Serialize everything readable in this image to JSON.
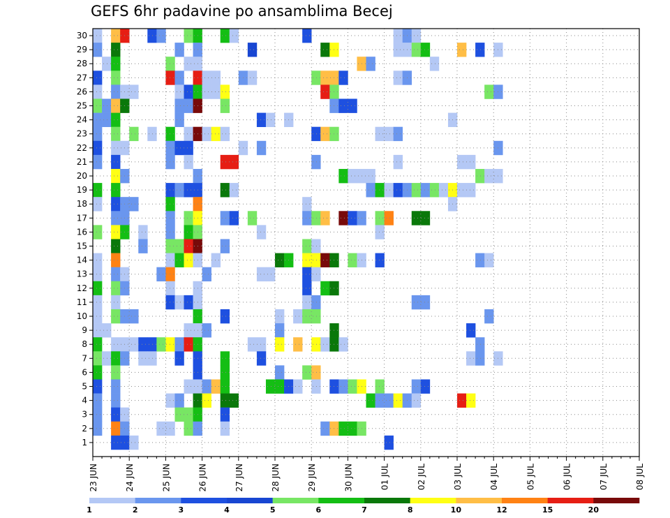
{
  "chart_data": {
    "type": "heatmap",
    "title": "GEFS 6hr padavine po ansamblima Becej",
    "y_ticks": [
      "1",
      "2",
      "3",
      "4",
      "5",
      "6",
      "7",
      "8",
      "9",
      "10",
      "11",
      "12",
      "13",
      "14",
      "15",
      "16",
      "17",
      "18",
      "19",
      "20",
      "21",
      "22",
      "23",
      "24",
      "25",
      "26",
      "27",
      "28",
      "29",
      "30"
    ],
    "y_range": [
      0,
      30
    ],
    "x_ticks": [
      "23 JUN",
      "24 JUN",
      "25 JUN",
      "26 JUN",
      "27 JUN",
      "28 JUN",
      "29 JUN",
      "30 JUN",
      "01 JUL",
      "02 JUL",
      "03 JUL",
      "04 JUL",
      "05 JUL",
      "06 JUL",
      "07 JUL",
      "08 JUL"
    ],
    "time_step_hours": 6,
    "grid": "dotted",
    "colorbar": {
      "labels": [
        "1",
        "2",
        "3",
        "4",
        "5",
        "6",
        "7",
        "8",
        "10",
        "12",
        "15",
        "20"
      ],
      "colors": [
        "#b4c8f5",
        "#6a96ee",
        "#1e50e0",
        "#1846d2",
        "#78e664",
        "#14be14",
        "#0a780a",
        "#ffff14",
        "#ffbe46",
        "#ff8214",
        "#e61e14",
        "#780a0a"
      ]
    },
    "cells": [
      [
        30,
        0,
        1
      ],
      [
        30,
        2,
        10
      ],
      [
        30,
        3,
        15
      ],
      [
        30,
        6,
        3
      ],
      [
        30,
        7,
        2
      ],
      [
        30,
        10,
        5
      ],
      [
        30,
        11,
        6
      ],
      [
        30,
        14,
        6
      ],
      [
        30,
        15,
        1
      ],
      [
        30,
        23,
        3
      ],
      [
        30,
        33,
        1
      ],
      [
        30,
        34,
        2
      ],
      [
        30,
        35,
        1
      ],
      [
        29,
        0,
        2
      ],
      [
        29,
        2,
        7
      ],
      [
        29,
        9,
        2
      ],
      [
        29,
        11,
        2
      ],
      [
        29,
        17,
        4
      ],
      [
        29,
        25,
        7
      ],
      [
        29,
        26,
        8
      ],
      [
        29,
        33,
        1
      ],
      [
        29,
        34,
        1
      ],
      [
        29,
        35,
        5
      ],
      [
        29,
        36,
        6
      ],
      [
        29,
        40,
        10
      ],
      [
        29,
        42,
        3
      ],
      [
        29,
        44,
        1
      ],
      [
        28,
        1,
        1
      ],
      [
        28,
        2,
        6
      ],
      [
        28,
        8,
        5
      ],
      [
        28,
        10,
        1
      ],
      [
        28,
        11,
        1
      ],
      [
        28,
        29,
        10
      ],
      [
        28,
        30,
        2
      ],
      [
        28,
        37,
        1
      ],
      [
        27,
        0,
        3
      ],
      [
        27,
        2,
        5
      ],
      [
        27,
        8,
        15
      ],
      [
        27,
        9,
        2
      ],
      [
        27,
        11,
        15
      ],
      [
        27,
        12,
        1
      ],
      [
        27,
        13,
        1
      ],
      [
        27,
        16,
        2
      ],
      [
        27,
        17,
        1
      ],
      [
        27,
        24,
        5
      ],
      [
        27,
        25,
        10
      ],
      [
        27,
        26,
        10
      ],
      [
        27,
        27,
        3
      ],
      [
        27,
        33,
        1
      ],
      [
        27,
        34,
        2
      ],
      [
        26,
        0,
        1
      ],
      [
        26,
        2,
        2
      ],
      [
        26,
        3,
        1
      ],
      [
        26,
        4,
        1
      ],
      [
        26,
        9,
        1
      ],
      [
        26,
        10,
        3
      ],
      [
        26,
        11,
        6
      ],
      [
        26,
        12,
        1
      ],
      [
        26,
        13,
        1
      ],
      [
        26,
        14,
        8
      ],
      [
        26,
        25,
        15
      ],
      [
        26,
        26,
        5
      ],
      [
        26,
        43,
        5
      ],
      [
        26,
        44,
        2
      ],
      [
        25,
        0,
        5
      ],
      [
        25,
        1,
        2
      ],
      [
        25,
        2,
        10
      ],
      [
        25,
        3,
        7
      ],
      [
        25,
        9,
        2
      ],
      [
        25,
        10,
        2
      ],
      [
        25,
        11,
        20
      ],
      [
        25,
        14,
        5
      ],
      [
        25,
        26,
        2
      ],
      [
        25,
        27,
        3
      ],
      [
        25,
        28,
        3
      ],
      [
        24,
        0,
        2
      ],
      [
        24,
        1,
        2
      ],
      [
        24,
        2,
        6
      ],
      [
        24,
        9,
        2
      ],
      [
        24,
        18,
        3
      ],
      [
        24,
        19,
        1
      ],
      [
        24,
        21,
        1
      ],
      [
        24,
        39,
        1
      ],
      [
        23,
        0,
        2
      ],
      [
        23,
        2,
        5
      ],
      [
        23,
        4,
        5
      ],
      [
        23,
        6,
        1
      ],
      [
        23,
        8,
        6
      ],
      [
        23,
        10,
        1
      ],
      [
        23,
        11,
        20
      ],
      [
        23,
        12,
        1
      ],
      [
        23,
        13,
        8
      ],
      [
        23,
        14,
        1
      ],
      [
        23,
        24,
        3
      ],
      [
        23,
        25,
        10
      ],
      [
        23,
        26,
        5
      ],
      [
        23,
        31,
        1
      ],
      [
        23,
        32,
        1
      ],
      [
        23,
        33,
        2
      ],
      [
        22,
        0,
        3
      ],
      [
        22,
        2,
        1
      ],
      [
        22,
        3,
        1
      ],
      [
        22,
        8,
        2
      ],
      [
        22,
        9,
        3
      ],
      [
        22,
        10,
        3
      ],
      [
        22,
        16,
        1
      ],
      [
        22,
        18,
        2
      ],
      [
        22,
        44,
        2
      ],
      [
        21,
        0,
        2
      ],
      [
        21,
        2,
        3
      ],
      [
        21,
        8,
        2
      ],
      [
        21,
        10,
        1
      ],
      [
        21,
        14,
        15
      ],
      [
        21,
        15,
        15
      ],
      [
        21,
        24,
        2
      ],
      [
        21,
        33,
        1
      ],
      [
        21,
        40,
        1
      ],
      [
        21,
        41,
        1
      ],
      [
        20,
        2,
        8
      ],
      [
        20,
        3,
        2
      ],
      [
        20,
        11,
        2
      ],
      [
        20,
        27,
        6
      ],
      [
        20,
        28,
        1
      ],
      [
        20,
        29,
        1
      ],
      [
        20,
        30,
        1
      ],
      [
        20,
        42,
        5
      ],
      [
        20,
        43,
        1
      ],
      [
        20,
        44,
        1
      ],
      [
        19,
        0,
        6
      ],
      [
        19,
        2,
        6
      ],
      [
        19,
        8,
        3
      ],
      [
        19,
        9,
        2
      ],
      [
        19,
        10,
        3
      ],
      [
        19,
        11,
        3
      ],
      [
        19,
        14,
        7
      ],
      [
        19,
        15,
        1
      ],
      [
        19,
        30,
        2
      ],
      [
        19,
        31,
        6
      ],
      [
        19,
        32,
        1
      ],
      [
        19,
        33,
        3
      ],
      [
        19,
        34,
        2
      ],
      [
        19,
        35,
        5
      ],
      [
        19,
        36,
        2
      ],
      [
        19,
        37,
        5
      ],
      [
        19,
        38,
        1
      ],
      [
        19,
        39,
        8
      ],
      [
        19,
        40,
        1
      ],
      [
        19,
        41,
        1
      ],
      [
        18,
        0,
        1
      ],
      [
        18,
        2,
        3
      ],
      [
        18,
        3,
        2
      ],
      [
        18,
        4,
        2
      ],
      [
        18,
        8,
        6
      ],
      [
        18,
        11,
        12
      ],
      [
        18,
        23,
        1
      ],
      [
        18,
        39,
        1
      ],
      [
        17,
        2,
        2
      ],
      [
        17,
        3,
        2
      ],
      [
        17,
        8,
        2
      ],
      [
        17,
        10,
        5
      ],
      [
        17,
        11,
        8
      ],
      [
        17,
        14,
        2
      ],
      [
        17,
        15,
        3
      ],
      [
        17,
        17,
        5
      ],
      [
        17,
        23,
        2
      ],
      [
        17,
        24,
        5
      ],
      [
        17,
        25,
        10
      ],
      [
        17,
        27,
        20
      ],
      [
        17,
        28,
        3
      ],
      [
        17,
        29,
        2
      ],
      [
        17,
        31,
        5
      ],
      [
        17,
        32,
        12
      ],
      [
        17,
        35,
        7
      ],
      [
        17,
        36,
        7
      ],
      [
        16,
        0,
        5
      ],
      [
        16,
        2,
        8
      ],
      [
        16,
        3,
        6
      ],
      [
        16,
        5,
        1
      ],
      [
        16,
        8,
        2
      ],
      [
        16,
        10,
        6
      ],
      [
        16,
        11,
        5
      ],
      [
        16,
        18,
        1
      ],
      [
        16,
        31,
        1
      ],
      [
        15,
        2,
        7
      ],
      [
        15,
        5,
        2
      ],
      [
        15,
        8,
        5
      ],
      [
        15,
        9,
        5
      ],
      [
        15,
        10,
        15
      ],
      [
        15,
        11,
        20
      ],
      [
        15,
        14,
        2
      ],
      [
        15,
        23,
        5
      ],
      [
        15,
        24,
        1
      ],
      [
        14,
        0,
        1
      ],
      [
        14,
        2,
        12
      ],
      [
        14,
        8,
        1
      ],
      [
        14,
        9,
        6
      ],
      [
        14,
        10,
        8
      ],
      [
        14,
        11,
        1
      ],
      [
        14,
        13,
        1
      ],
      [
        14,
        20,
        7
      ],
      [
        14,
        21,
        6
      ],
      [
        14,
        23,
        8
      ],
      [
        14,
        24,
        8
      ],
      [
        14,
        25,
        20
      ],
      [
        14,
        26,
        7
      ],
      [
        14,
        28,
        5
      ],
      [
        14,
        29,
        1
      ],
      [
        14,
        31,
        3
      ],
      [
        14,
        42,
        2
      ],
      [
        14,
        43,
        1
      ],
      [
        13,
        0,
        1
      ],
      [
        13,
        2,
        2
      ],
      [
        13,
        3,
        1
      ],
      [
        13,
        7,
        2
      ],
      [
        13,
        8,
        12
      ],
      [
        13,
        12,
        2
      ],
      [
        13,
        18,
        1
      ],
      [
        13,
        19,
        1
      ],
      [
        13,
        23,
        3
      ],
      [
        13,
        24,
        1
      ],
      [
        12,
        0,
        6
      ],
      [
        12,
        2,
        5
      ],
      [
        12,
        3,
        2
      ],
      [
        12,
        8,
        1
      ],
      [
        12,
        11,
        1
      ],
      [
        12,
        23,
        3
      ],
      [
        12,
        25,
        6
      ],
      [
        12,
        26,
        7
      ],
      [
        11,
        0,
        1
      ],
      [
        11,
        2,
        1
      ],
      [
        11,
        8,
        3
      ],
      [
        11,
        9,
        1
      ],
      [
        11,
        10,
        3
      ],
      [
        11,
        11,
        1
      ],
      [
        11,
        23,
        1
      ],
      [
        11,
        24,
        2
      ],
      [
        11,
        35,
        2
      ],
      [
        11,
        36,
        2
      ],
      [
        10,
        0,
        1
      ],
      [
        10,
        2,
        5
      ],
      [
        10,
        3,
        2
      ],
      [
        10,
        4,
        2
      ],
      [
        10,
        11,
        6
      ],
      [
        10,
        14,
        3
      ],
      [
        10,
        20,
        1
      ],
      [
        10,
        22,
        1
      ],
      [
        10,
        23,
        5
      ],
      [
        10,
        24,
        5
      ],
      [
        10,
        43,
        2
      ],
      [
        9,
        0,
        1
      ],
      [
        9,
        1,
        1
      ],
      [
        9,
        10,
        1
      ],
      [
        9,
        11,
        1
      ],
      [
        9,
        12,
        2
      ],
      [
        9,
        20,
        2
      ],
      [
        9,
        26,
        7
      ],
      [
        9,
        41,
        3
      ],
      [
        8,
        0,
        6
      ],
      [
        8,
        2,
        1
      ],
      [
        8,
        3,
        1
      ],
      [
        8,
        4,
        1
      ],
      [
        8,
        5,
        3
      ],
      [
        8,
        6,
        3
      ],
      [
        8,
        7,
        5
      ],
      [
        8,
        8,
        8
      ],
      [
        8,
        9,
        2
      ],
      [
        8,
        10,
        15
      ],
      [
        8,
        11,
        6
      ],
      [
        8,
        17,
        1
      ],
      [
        8,
        18,
        1
      ],
      [
        8,
        20,
        8
      ],
      [
        8,
        22,
        10
      ],
      [
        8,
        24,
        8
      ],
      [
        8,
        25,
        1
      ],
      [
        8,
        26,
        7
      ],
      [
        8,
        27,
        1
      ],
      [
        8,
        42,
        2
      ],
      [
        7,
        0,
        5
      ],
      [
        7,
        1,
        1
      ],
      [
        7,
        2,
        6
      ],
      [
        7,
        3,
        2
      ],
      [
        7,
        5,
        1
      ],
      [
        7,
        6,
        1
      ],
      [
        7,
        9,
        3
      ],
      [
        7,
        11,
        3
      ],
      [
        7,
        14,
        6
      ],
      [
        7,
        18,
        3
      ],
      [
        7,
        41,
        1
      ],
      [
        7,
        42,
        2
      ],
      [
        7,
        44,
        1
      ],
      [
        6,
        0,
        6
      ],
      [
        6,
        2,
        5
      ],
      [
        6,
        11,
        3
      ],
      [
        6,
        14,
        6
      ],
      [
        6,
        20,
        2
      ],
      [
        6,
        23,
        5
      ],
      [
        6,
        24,
        10
      ],
      [
        5,
        0,
        3
      ],
      [
        5,
        2,
        2
      ],
      [
        5,
        10,
        1
      ],
      [
        5,
        11,
        1
      ],
      [
        5,
        12,
        2
      ],
      [
        5,
        13,
        10
      ],
      [
        5,
        14,
        6
      ],
      [
        5,
        19,
        6
      ],
      [
        5,
        20,
        6
      ],
      [
        5,
        21,
        3
      ],
      [
        5,
        22,
        1
      ],
      [
        5,
        24,
        1
      ],
      [
        5,
        26,
        3
      ],
      [
        5,
        27,
        2
      ],
      [
        5,
        28,
        5
      ],
      [
        5,
        29,
        8
      ],
      [
        5,
        31,
        5
      ],
      [
        5,
        35,
        2
      ],
      [
        5,
        36,
        3
      ],
      [
        4,
        0,
        2
      ],
      [
        4,
        2,
        2
      ],
      [
        4,
        8,
        1
      ],
      [
        4,
        9,
        2
      ],
      [
        4,
        11,
        7
      ],
      [
        4,
        12,
        8
      ],
      [
        4,
        14,
        7
      ],
      [
        4,
        15,
        7
      ],
      [
        4,
        30,
        6
      ],
      [
        4,
        31,
        2
      ],
      [
        4,
        32,
        2
      ],
      [
        4,
        33,
        8
      ],
      [
        4,
        34,
        2
      ],
      [
        4,
        35,
        1
      ],
      [
        4,
        40,
        15
      ],
      [
        4,
        41,
        8
      ],
      [
        3,
        0,
        2
      ],
      [
        3,
        2,
        3
      ],
      [
        3,
        3,
        1
      ],
      [
        3,
        9,
        5
      ],
      [
        3,
        10,
        5
      ],
      [
        3,
        11,
        6
      ],
      [
        3,
        14,
        3
      ],
      [
        2,
        0,
        2
      ],
      [
        2,
        2,
        12
      ],
      [
        2,
        3,
        2
      ],
      [
        2,
        7,
        1
      ],
      [
        2,
        8,
        1
      ],
      [
        2,
        10,
        5
      ],
      [
        2,
        11,
        2
      ],
      [
        2,
        14,
        1
      ],
      [
        2,
        25,
        2
      ],
      [
        2,
        26,
        10
      ],
      [
        2,
        27,
        6
      ],
      [
        2,
        28,
        6
      ],
      [
        2,
        29,
        5
      ],
      [
        1,
        2,
        3
      ],
      [
        1,
        3,
        3
      ],
      [
        1,
        4,
        1
      ],
      [
        1,
        32,
        3
      ]
    ]
  }
}
